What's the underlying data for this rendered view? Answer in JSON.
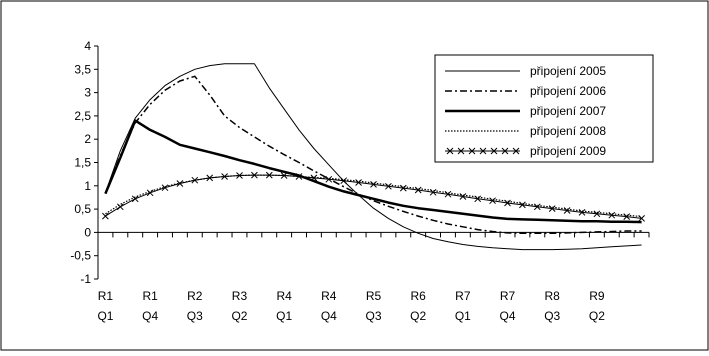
{
  "chart_data": {
    "type": "line",
    "title": "",
    "xlabel": "",
    "ylabel": "",
    "ylim": [
      -1,
      4
    ],
    "yticks": [
      -1,
      -0.5,
      0,
      0.5,
      1,
      1.5,
      2,
      2.5,
      3,
      3.5,
      4
    ],
    "ytick_labels": [
      "-1",
      "-0,5",
      "0",
      "0,5",
      "1",
      "1,5",
      "2",
      "2,5",
      "3",
      "3,5",
      "4"
    ],
    "x_count": 37,
    "x_tick_labels": [
      {
        "index": 0,
        "line1": "R1",
        "line2": "Q1"
      },
      {
        "index": 3,
        "line1": "R1",
        "line2": "Q4"
      },
      {
        "index": 6,
        "line1": "R2",
        "line2": "Q3"
      },
      {
        "index": 9,
        "line1": "R3",
        "line2": "Q2"
      },
      {
        "index": 12,
        "line1": "R4",
        "line2": "Q1"
      },
      {
        "index": 15,
        "line1": "R4",
        "line2": "Q4"
      },
      {
        "index": 18,
        "line1": "R5",
        "line2": "Q3"
      },
      {
        "index": 21,
        "line1": "R6",
        "line2": "Q2"
      },
      {
        "index": 24,
        "line1": "R7",
        "line2": "Q1"
      },
      {
        "index": 27,
        "line1": "R7",
        "line2": "Q4"
      },
      {
        "index": 30,
        "line1": "R8",
        "line2": "Q3"
      },
      {
        "index": 33,
        "line1": "R9",
        "line2": "Q2"
      }
    ],
    "legend_position": "top-right",
    "grid": false,
    "series": [
      {
        "name": "připojení 2005",
        "style": "thin",
        "values": [
          0.85,
          1.75,
          2.45,
          2.85,
          3.15,
          3.35,
          3.5,
          3.58,
          3.62,
          3.62,
          3.62,
          3.1,
          2.65,
          2.2,
          1.8,
          1.45,
          1.1,
          0.8,
          0.52,
          0.3,
          0.12,
          -0.02,
          -0.13,
          -0.2,
          -0.26,
          -0.3,
          -0.33,
          -0.35,
          -0.37,
          -0.37,
          -0.37,
          -0.36,
          -0.35,
          -0.33,
          -0.31,
          -0.29,
          -0.27
        ]
      },
      {
        "name": "připojení 2006",
        "style": "dashdot",
        "values": [
          0.85,
          1.65,
          2.35,
          2.75,
          3.05,
          3.25,
          3.35,
          2.95,
          2.5,
          2.25,
          2.05,
          1.85,
          1.67,
          1.5,
          1.32,
          1.15,
          0.98,
          0.82,
          0.68,
          0.56,
          0.45,
          0.35,
          0.26,
          0.18,
          0.12,
          0.06,
          0.02,
          -0.01,
          -0.02,
          -0.02,
          -0.02,
          -0.01,
          0,
          0.01,
          0.02,
          0.03,
          0.03
        ]
      },
      {
        "name": "připojení 2007",
        "style": "thick",
        "values": [
          0.83,
          1.6,
          2.4,
          2.2,
          2.05,
          1.88,
          1.8,
          1.72,
          1.64,
          1.55,
          1.47,
          1.38,
          1.3,
          1.22,
          1.1,
          0.98,
          0.88,
          0.8,
          0.72,
          0.64,
          0.57,
          0.52,
          0.48,
          0.44,
          0.4,
          0.36,
          0.32,
          0.29,
          0.28,
          0.27,
          0.26,
          0.25,
          0.24,
          0.24,
          0.23,
          0.23,
          0.22
        ]
      },
      {
        "name": "připojení 2008",
        "style": "dotted",
        "values": [
          0.4,
          0.6,
          0.76,
          0.88,
          0.98,
          1.06,
          1.12,
          1.17,
          1.2,
          1.22,
          1.23,
          1.23,
          1.22,
          1.2,
          1.18,
          1.16,
          1.13,
          1.1,
          1.06,
          1.02,
          0.98,
          0.94,
          0.9,
          0.85,
          0.8,
          0.76,
          0.71,
          0.67,
          0.62,
          0.58,
          0.54,
          0.5,
          0.46,
          0.43,
          0.4,
          0.37,
          0.34
        ]
      },
      {
        "name": "připojení 2009",
        "style": "crosses",
        "values": [
          0.35,
          0.55,
          0.72,
          0.85,
          0.96,
          1.05,
          1.12,
          1.17,
          1.2,
          1.22,
          1.23,
          1.23,
          1.22,
          1.2,
          1.17,
          1.14,
          1.11,
          1.07,
          1.03,
          0.99,
          0.95,
          0.91,
          0.86,
          0.82,
          0.77,
          0.72,
          0.68,
          0.63,
          0.59,
          0.55,
          0.51,
          0.47,
          0.43,
          0.4,
          0.37,
          0.34,
          0.3
        ]
      }
    ]
  }
}
